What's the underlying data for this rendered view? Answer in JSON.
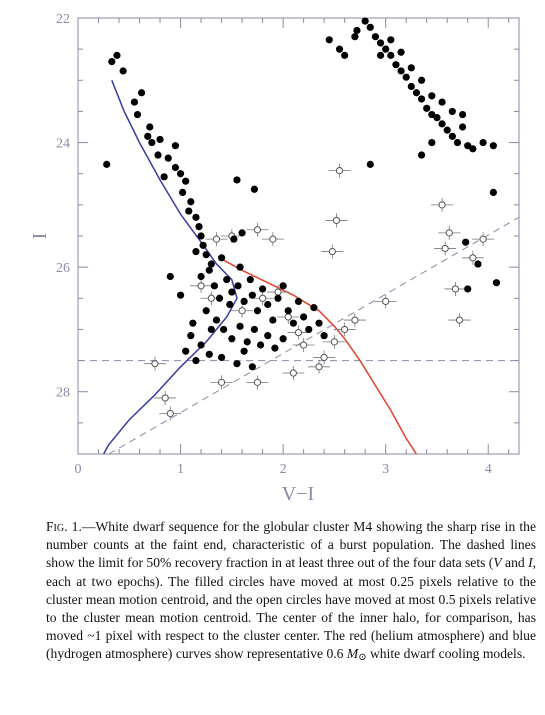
{
  "chart_data": {
    "type": "scatter",
    "xlabel": "V−I",
    "ylabel": "I",
    "xlim": [
      0,
      4.3
    ],
    "ylim": [
      29,
      22
    ],
    "y_inverted": true,
    "grid": false,
    "x_ticks": [
      0,
      1,
      2,
      3,
      4
    ],
    "y_ticks": [
      22,
      24,
      26,
      28
    ],
    "filled_points": [
      [
        0.38,
        22.6
      ],
      [
        0.33,
        22.7
      ],
      [
        0.44,
        22.85
      ],
      [
        0.62,
        23.2
      ],
      [
        0.55,
        23.35
      ],
      [
        0.58,
        23.55
      ],
      [
        0.7,
        23.75
      ],
      [
        0.68,
        23.9
      ],
      [
        0.72,
        24.0
      ],
      [
        0.8,
        23.95
      ],
      [
        0.78,
        24.2
      ],
      [
        0.88,
        24.25
      ],
      [
        0.95,
        24.4
      ],
      [
        0.84,
        24.55
      ],
      [
        1.0,
        24.5
      ],
      [
        1.05,
        24.62
      ],
      [
        1.02,
        24.8
      ],
      [
        1.1,
        24.95
      ],
      [
        1.08,
        25.1
      ],
      [
        1.15,
        25.2
      ],
      [
        1.18,
        25.35
      ],
      [
        1.2,
        25.5
      ],
      [
        1.22,
        25.65
      ],
      [
        1.25,
        25.8
      ],
      [
        1.3,
        25.95
      ],
      [
        1.28,
        26.05
      ],
      [
        1.15,
        25.75
      ],
      [
        1.4,
        25.85
      ],
      [
        1.52,
        25.55
      ],
      [
        1.58,
        26.0
      ],
      [
        1.6,
        25.45
      ],
      [
        1.33,
        26.3
      ],
      [
        1.38,
        26.5
      ],
      [
        1.45,
        26.2
      ],
      [
        1.5,
        26.4
      ],
      [
        1.48,
        26.6
      ],
      [
        1.56,
        26.3
      ],
      [
        1.62,
        26.55
      ],
      [
        1.68,
        26.2
      ],
      [
        1.7,
        26.45
      ],
      [
        1.75,
        26.7
      ],
      [
        1.8,
        26.35
      ],
      [
        1.85,
        26.6
      ],
      [
        1.9,
        26.85
      ],
      [
        1.95,
        26.5
      ],
      [
        2.0,
        26.3
      ],
      [
        2.05,
        26.7
      ],
      [
        2.1,
        26.9
      ],
      [
        2.15,
        26.55
      ],
      [
        2.2,
        26.8
      ],
      [
        2.25,
        27.0
      ],
      [
        2.3,
        26.65
      ],
      [
        2.35,
        26.9
      ],
      [
        2.4,
        27.1
      ],
      [
        1.35,
        26.85
      ],
      [
        1.42,
        27.0
      ],
      [
        1.5,
        27.15
      ],
      [
        1.58,
        26.95
      ],
      [
        1.65,
        27.2
      ],
      [
        1.72,
        27.0
      ],
      [
        1.78,
        27.25
      ],
      [
        1.85,
        27.1
      ],
      [
        1.92,
        27.3
      ],
      [
        2.0,
        27.15
      ],
      [
        1.1,
        27.1
      ],
      [
        1.2,
        27.25
      ],
      [
        1.28,
        27.4
      ],
      [
        1.05,
        27.35
      ],
      [
        1.15,
        27.5
      ],
      [
        1.4,
        27.45
      ],
      [
        1.55,
        27.55
      ],
      [
        1.62,
        27.35
      ],
      [
        1.7,
        27.6
      ],
      [
        1.25,
        26.7
      ],
      [
        1.3,
        27.0
      ],
      [
        1.12,
        26.9
      ],
      [
        0.9,
        26.15
      ],
      [
        1.0,
        26.45
      ],
      [
        0.28,
        24.35
      ],
      [
        0.95,
        24.05
      ],
      [
        1.2,
        26.15
      ],
      [
        2.6,
        22.6
      ],
      [
        2.72,
        22.2
      ],
      [
        2.8,
        22.05
      ],
      [
        2.85,
        22.15
      ],
      [
        2.9,
        22.3
      ],
      [
        2.95,
        22.4
      ],
      [
        3.0,
        22.5
      ],
      [
        3.05,
        22.6
      ],
      [
        3.1,
        22.75
      ],
      [
        3.15,
        22.85
      ],
      [
        3.2,
        22.95
      ],
      [
        3.25,
        23.1
      ],
      [
        3.3,
        23.2
      ],
      [
        3.35,
        23.3
      ],
      [
        3.4,
        23.45
      ],
      [
        3.45,
        23.55
      ],
      [
        3.5,
        23.6
      ],
      [
        3.55,
        23.7
      ],
      [
        3.6,
        23.8
      ],
      [
        3.65,
        23.9
      ],
      [
        3.7,
        24.0
      ],
      [
        3.75,
        23.75
      ],
      [
        3.8,
        24.05
      ],
      [
        3.85,
        24.1
      ],
      [
        3.95,
        24.0
      ],
      [
        4.05,
        24.05
      ],
      [
        2.95,
        22.6
      ],
      [
        3.05,
        22.35
      ],
      [
        3.15,
        22.55
      ],
      [
        3.25,
        22.8
      ],
      [
        3.35,
        23.0
      ],
      [
        3.45,
        23.25
      ],
      [
        3.55,
        23.35
      ],
      [
        3.65,
        23.5
      ],
      [
        3.75,
        23.55
      ],
      [
        2.7,
        22.3
      ],
      [
        2.55,
        22.5
      ],
      [
        2.45,
        22.35
      ],
      [
        3.35,
        24.2
      ],
      [
        3.45,
        24.0
      ],
      [
        2.85,
        24.35
      ],
      [
        4.05,
        24.8
      ],
      [
        3.78,
        25.6
      ],
      [
        3.9,
        25.95
      ],
      [
        4.08,
        26.25
      ],
      [
        3.8,
        26.35
      ],
      [
        1.55,
        24.6
      ],
      [
        1.72,
        24.75
      ]
    ],
    "open_points": [
      [
        0.75,
        27.55
      ],
      [
        0.85,
        28.1
      ],
      [
        0.9,
        28.35
      ],
      [
        1.35,
        25.55
      ],
      [
        1.5,
        25.5
      ],
      [
        1.6,
        26.7
      ],
      [
        1.8,
        26.5
      ],
      [
        1.95,
        26.4
      ],
      [
        2.05,
        26.8
      ],
      [
        2.15,
        27.05
      ],
      [
        2.2,
        27.25
      ],
      [
        2.4,
        27.45
      ],
      [
        2.5,
        27.2
      ],
      [
        2.6,
        27.0
      ],
      [
        2.7,
        26.85
      ],
      [
        3.0,
        26.55
      ],
      [
        3.55,
        25.0
      ],
      [
        3.58,
        25.7
      ],
      [
        3.62,
        25.45
      ],
      [
        3.68,
        26.35
      ],
      [
        3.72,
        26.85
      ],
      [
        3.85,
        25.85
      ],
      [
        3.95,
        25.55
      ],
      [
        2.52,
        25.25
      ],
      [
        2.48,
        25.75
      ],
      [
        2.55,
        24.45
      ],
      [
        1.75,
        25.4
      ],
      [
        1.9,
        25.55
      ],
      [
        1.4,
        27.85
      ],
      [
        1.75,
        27.85
      ],
      [
        2.1,
        27.7
      ],
      [
        2.35,
        27.6
      ],
      [
        1.2,
        26.3
      ],
      [
        1.3,
        26.5
      ]
    ],
    "series": [
      {
        "name": "hydrogen atmosphere",
        "color": "#3a3aa6",
        "points": [
          [
            0.33,
            23.0
          ],
          [
            0.45,
            23.5
          ],
          [
            0.6,
            24.0
          ],
          [
            0.8,
            24.6
          ],
          [
            1.0,
            25.15
          ],
          [
            1.2,
            25.6
          ],
          [
            1.35,
            25.95
          ],
          [
            1.5,
            26.2
          ],
          [
            1.55,
            26.5
          ],
          [
            1.45,
            26.8
          ],
          [
            1.25,
            27.2
          ],
          [
            1.0,
            27.6
          ],
          [
            0.75,
            28.05
          ],
          [
            0.5,
            28.45
          ],
          [
            0.3,
            28.85
          ],
          [
            0.25,
            29.0
          ]
        ]
      },
      {
        "name": "helium atmosphere",
        "color": "#e0442c",
        "points": [
          [
            1.38,
            25.85
          ],
          [
            1.6,
            26.05
          ],
          [
            1.85,
            26.25
          ],
          [
            2.1,
            26.45
          ],
          [
            2.35,
            26.7
          ],
          [
            2.5,
            26.95
          ],
          [
            2.6,
            27.15
          ],
          [
            2.75,
            27.5
          ],
          [
            2.9,
            27.9
          ],
          [
            3.05,
            28.3
          ],
          [
            3.2,
            28.75
          ],
          [
            3.3,
            29.0
          ]
        ]
      }
    ],
    "dashed_lines": [
      {
        "from": [
          0.3,
          29.0
        ],
        "to": [
          4.3,
          25.2
        ]
      },
      {
        "from": [
          0.0,
          27.5
        ],
        "to": [
          4.3,
          27.5
        ]
      }
    ]
  },
  "caption": {
    "fig_label": "Fig. 1.",
    "part1": "—White dwarf sequence for the globular cluster M4 showing the sharp rise in the number counts at the faint end, characteristic of a burst population. The dashed lines show the limit for 50% recovery fraction in at least three out of the four data sets (",
    "v": "V",
    "and": " and ",
    "i": "I",
    "part2": ", each at two epochs). The filled circles have moved at most 0.25 pixels relative to the cluster mean motion centroid, and the open circles have moved at most 0.5 pixels relative to the cluster mean motion centroid. The center of the inner halo, for comparison, has moved ~1 pixel with respect to the cluster center. The red (helium atmosphere) and blue (hydrogen atmosphere) curves show representative 0.6 ",
    "m": "M",
    "sun": "⊙",
    "part3": " white dwarf cooling models."
  }
}
